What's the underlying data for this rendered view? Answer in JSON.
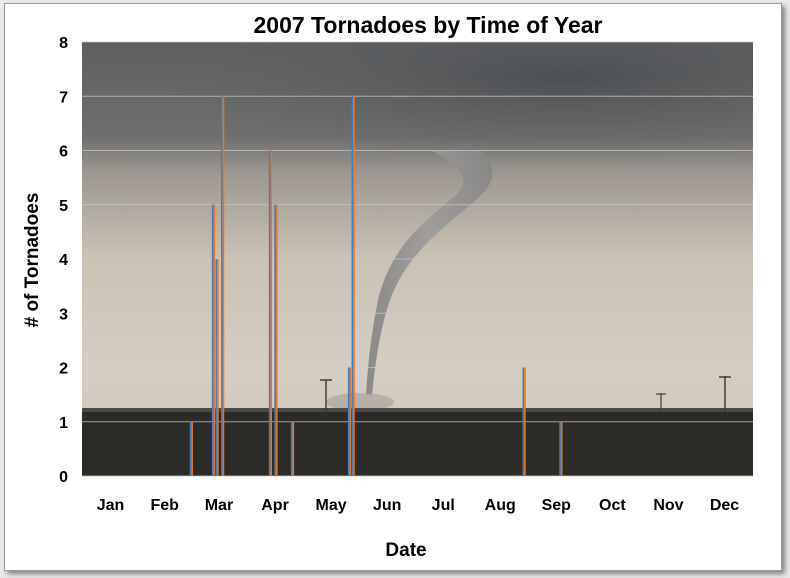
{
  "chart_data": {
    "type": "bar",
    "title": "2007 Tornadoes by Time of Year",
    "xlabel": "Date",
    "ylabel": "# of Tornadoes",
    "ylim": [
      0,
      8
    ],
    "yticks": [
      "0",
      "1",
      "2",
      "3",
      "4",
      "5",
      "6",
      "7",
      "8"
    ],
    "x_tick_labels": [
      "Jan",
      "Feb",
      "Mar",
      "Apr",
      "May",
      "Jun",
      "Jul",
      "Aug",
      "Sep",
      "Oct",
      "Nov",
      "Dec"
    ],
    "grid": true,
    "legend": "none",
    "background": "tornado photograph",
    "bar_colors": {
      "left": "#4a7ab8",
      "right": "#e07a2a"
    },
    "points": [
      {
        "day": "Mar 1",
        "value": 1
      },
      {
        "day": "Mar 13",
        "value": 5
      },
      {
        "day": "Mar 15",
        "value": 4
      },
      {
        "day": "Mar 18",
        "value": 7
      },
      {
        "day": "Apr 13",
        "value": 6
      },
      {
        "day": "Apr 16",
        "value": 5
      },
      {
        "day": "Apr 25",
        "value": 1
      },
      {
        "day": "May 26",
        "value": 2
      },
      {
        "day": "May 28",
        "value": 7
      },
      {
        "day": "Aug 29",
        "value": 2
      },
      {
        "day": "Sep 18",
        "value": 1
      }
    ]
  }
}
